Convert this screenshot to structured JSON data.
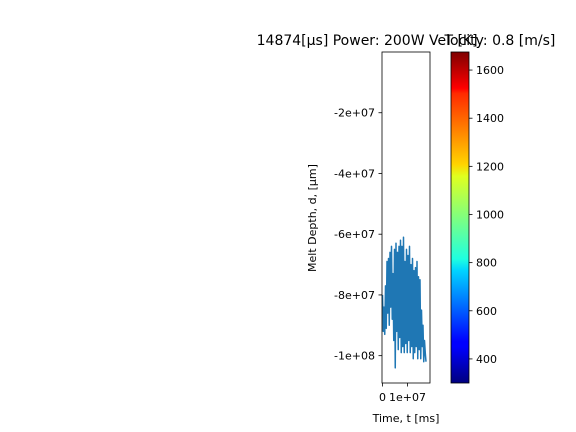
{
  "chart_data": [
    {
      "type": "line",
      "title": "14874[μs] Power: 200W Velocity: 0.8 [m/s]",
      "xlabel": "Time, t [ms]",
      "ylabel": "Melt Depth, d, [μm]",
      "xlim": [
        -200000,
        19000000
      ],
      "ylim": [
        -109000000,
        0
      ],
      "x_ticks": [
        0,
        10000000
      ],
      "x_tick_labels": [
        "0",
        "1e+07"
      ],
      "y_ticks": [
        -20000000,
        -40000000,
        -60000000,
        -80000000,
        -100000000
      ],
      "y_tick_labels": [
        "-2e+07",
        "-4e+07",
        "-6e+07",
        "-8e+07",
        "-1e+08"
      ],
      "grid": false,
      "line_color": "#1f77b4",
      "series": [
        {
          "x": [
            0,
            300000,
            600000,
            900000,
            1200000,
            1500000,
            1800000,
            2100000,
            2400000,
            2700000,
            3000000,
            3300000,
            3600000,
            3900000,
            4200000,
            4500000,
            4800000,
            5100000,
            5400000,
            5700000,
            6000000,
            6300000,
            6600000,
            6900000,
            7200000,
            7500000,
            7800000,
            8100000,
            8400000,
            8700000,
            9000000,
            9300000,
            9600000,
            9900000,
            10200000,
            10500000,
            10800000,
            11100000,
            11400000,
            11700000,
            12000000,
            12300000,
            12600000,
            12900000,
            13200000,
            13500000,
            13800000,
            14100000,
            14400000,
            14700000,
            15000000,
            15300000,
            15600000,
            15900000,
            16200000,
            16500000,
            16800000,
            17100000,
            17400000
          ],
          "y": [
            -80000000,
            -92000000,
            -84000000,
            -93000000,
            -77000000,
            -91000000,
            -69000000,
            -86000000,
            -68000000,
            -90000000,
            -66000000,
            -84000000,
            -64000000,
            -88000000,
            -73000000,
            -95000000,
            -65000000,
            -104000000,
            -63000000,
            -92000000,
            -66000000,
            -98000000,
            -64000000,
            -94000000,
            -62000000,
            -99000000,
            -64000000,
            -97000000,
            -61000000,
            -99000000,
            -69000000,
            -96000000,
            -65000000,
            -99000000,
            -67000000,
            -95000000,
            -64000000,
            -99000000,
            -70000000,
            -97000000,
            -68000000,
            -101000000,
            -72000000,
            -99000000,
            -71000000,
            -97000000,
            -69000000,
            -101000000,
            -74000000,
            -98000000,
            -75000000,
            -101000000,
            -85000000,
            -97000000,
            -90000000,
            -102000000,
            -95000000,
            -99000000,
            -102000000
          ]
        }
      ]
    },
    {
      "type": "colorbar",
      "title": "T [K]",
      "colormap": "jet",
      "range": [
        300,
        1675
      ],
      "ticks": [
        400,
        600,
        800,
        1000,
        1200,
        1400,
        1600
      ],
      "tick_labels": [
        "400",
        "600",
        "800",
        "1000",
        "1200",
        "1400",
        "1600"
      ]
    }
  ]
}
